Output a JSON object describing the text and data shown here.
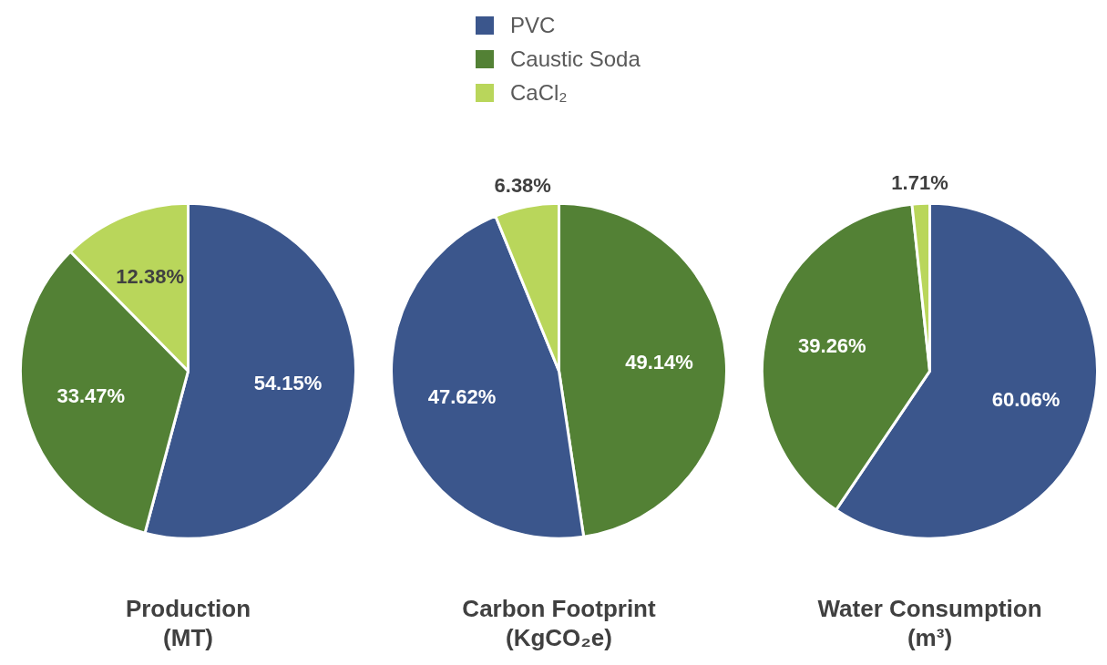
{
  "chart_data": [
    {
      "type": "pie",
      "title": "Production (MT)",
      "categories": [
        "PVC",
        "Caustic Soda",
        "CaCl₂"
      ],
      "values": [
        54.15,
        33.47,
        12.38
      ],
      "colors": [
        "#3b568c",
        "#538135",
        "#b9d65b"
      ],
      "value_labels": [
        "54.15%",
        "33.47%",
        "12.38%"
      ],
      "legend": "top"
    },
    {
      "type": "pie",
      "title": "Carbon Footprint (KgCO₂e)",
      "categories": [
        null,
        null,
        null
      ],
      "values": [
        49.14,
        47.62,
        6.38
      ],
      "colors": [
        "#538135",
        "#3b568c",
        "#b9d65b"
      ],
      "value_labels": [
        "49.14%",
        "47.62%",
        "6.38%"
      ]
    },
    {
      "type": "pie",
      "title": "Water Consumption (m³)",
      "categories": [
        null,
        null,
        null
      ],
      "values": [
        60.06,
        39.26,
        1.71
      ],
      "colors": [
        "#3b568c",
        "#538135",
        "#b9d65b"
      ],
      "value_labels": [
        "60.06%",
        "39.26%",
        "1.71%"
      ]
    }
  ]
}
